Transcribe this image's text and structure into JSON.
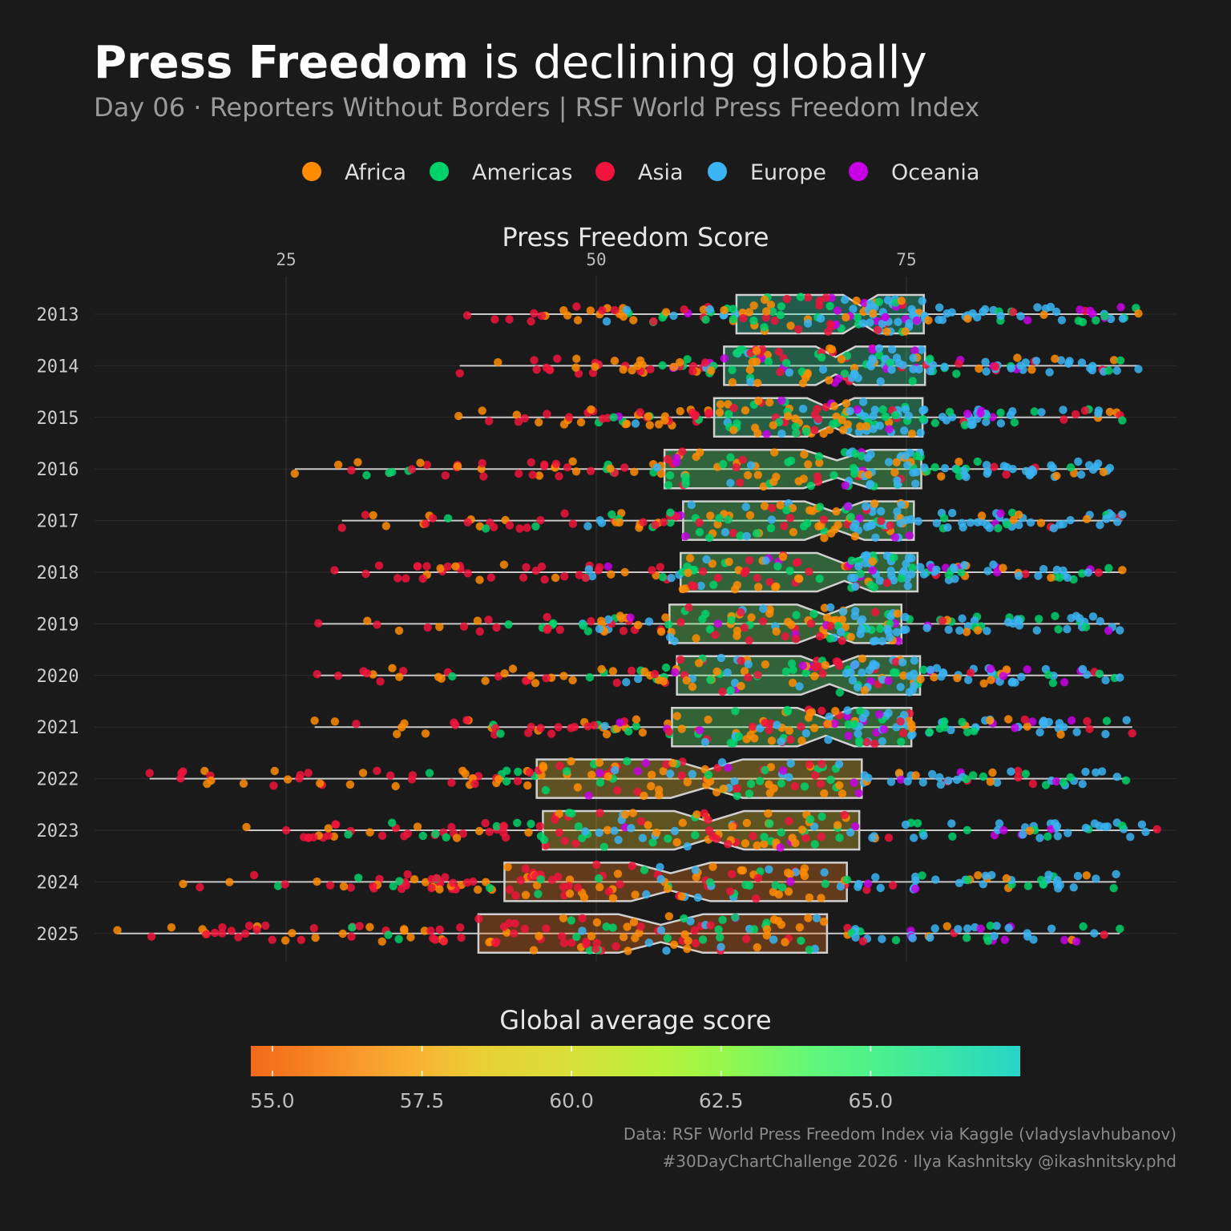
{
  "title": {
    "bold": "Press Freedom",
    "rest": " is declining globally"
  },
  "subtitle": "Day 06 · Reporters Without Borders | RSF World Press Freedom Index",
  "legend": [
    {
      "label": "Africa",
      "color": "#ff8c00"
    },
    {
      "label": "Americas",
      "color": "#00d26a"
    },
    {
      "label": "Asia",
      "color": "#f0143c"
    },
    {
      "label": "Europe",
      "color": "#3ab4f2"
    },
    {
      "label": "Oceania",
      "color": "#c800e6"
    }
  ],
  "colorbar": {
    "title": "Global average score",
    "range": [
      54.64,
      67.5
    ],
    "ticks": [
      "55.0",
      "57.5",
      "60.0",
      "62.5",
      "65.0"
    ],
    "tick_values": [
      55,
      57.5,
      60,
      62.5,
      65
    ],
    "stops": [
      [
        54.64,
        "#f26a1b"
      ],
      [
        55.5,
        "#f57f20"
      ],
      [
        56.5,
        "#f99b2d"
      ],
      [
        57.5,
        "#f7b534"
      ],
      [
        58.5,
        "#e8cf35"
      ],
      [
        60,
        "#d9e03a"
      ],
      [
        61.5,
        "#b7f23c"
      ],
      [
        62.5,
        "#96f74a"
      ],
      [
        64,
        "#62f77a"
      ],
      [
        65,
        "#4ef18c"
      ],
      [
        66.5,
        "#35e2ad"
      ],
      [
        67.5,
        "#27d4c8"
      ]
    ]
  },
  "caption": {
    "line1": "Data: RSF World Press Freedom Index via Kaggle (vladyslavhubanov)",
    "line2": "#30DayChartChallenge 2026 · Ilya Kashnitsky @ikashnitsky.phd"
  },
  "chart_data": {
    "type": "boxplot with jittered points",
    "xlabel": "Press Freedom Score",
    "x_ticks": [
      "25",
      "50",
      "75"
    ],
    "x_tick_values": [
      25,
      50,
      75
    ],
    "xlim": [
      11,
      96
    ],
    "grid": true,
    "legend_placement": "top",
    "point_color_by": "region",
    "box_fill_by": "global average score",
    "years": [
      {
        "year": "2013",
        "min": 39.6,
        "q1": 61.3,
        "median": 71.3,
        "q3": 76.4,
        "max": 93.7,
        "notch": 1.4,
        "global_average": 66.6
      },
      {
        "year": "2014",
        "min": 39.0,
        "q1": 60.3,
        "median": 69.3,
        "q3": 76.5,
        "max": 93.7,
        "notch": 1.6,
        "global_average": 66.2
      },
      {
        "year": "2015",
        "min": 38.9,
        "q1": 59.5,
        "median": 68.9,
        "q3": 76.3,
        "max": 92.4,
        "notch": 1.9,
        "global_average": 65.8
      },
      {
        "year": "2016",
        "min": 25.7,
        "q1": 55.5,
        "median": 69.4,
        "q3": 76.2,
        "max": 91.4,
        "notch": 2.7,
        "global_average": 64.0
      },
      {
        "year": "2017",
        "min": 29.5,
        "q1": 57.0,
        "median": 69.2,
        "q3": 75.6,
        "max": 92.4,
        "notch": 2.4,
        "global_average": 64.0
      },
      {
        "year": "2018",
        "min": 28.9,
        "q1": 56.8,
        "median": 70.0,
        "q3": 75.9,
        "max": 92.4,
        "notch": 2.2,
        "global_average": 64.1
      },
      {
        "year": "2019",
        "min": 27.6,
        "q1": 55.9,
        "median": 68.5,
        "q3": 74.6,
        "max": 92.2,
        "notch": 2.3,
        "global_average": 63.6
      },
      {
        "year": "2020",
        "min": 27.5,
        "q1": 56.5,
        "median": 68.8,
        "q3": 76.1,
        "max": 92.2,
        "notch": 2.3,
        "global_average": 64.0
      },
      {
        "year": "2021",
        "min": 27.3,
        "q1": 56.1,
        "median": 68.5,
        "q3": 75.4,
        "max": 93.2,
        "notch": 2.3,
        "global_average": 63.8
      },
      {
        "year": "2022",
        "min": 14.0,
        "q1": 45.2,
        "median": 58.9,
        "q3": 71.4,
        "max": 92.7,
        "notch": 2.9,
        "global_average": 58.0
      },
      {
        "year": "2023",
        "min": 21.8,
        "q1": 45.7,
        "median": 59.1,
        "q3": 71.2,
        "max": 95.2,
        "notch": 2.8,
        "global_average": 58.4
      },
      {
        "year": "2024",
        "min": 16.7,
        "q1": 42.6,
        "median": 56.0,
        "q3": 70.2,
        "max": 91.9,
        "notch": 3.2,
        "global_average": 55.5
      },
      {
        "year": "2025",
        "min": 11.4,
        "q1": 40.5,
        "median": 55.2,
        "q3": 68.6,
        "max": 92.2,
        "notch": 3.4,
        "global_average": 55.0
      }
    ]
  }
}
